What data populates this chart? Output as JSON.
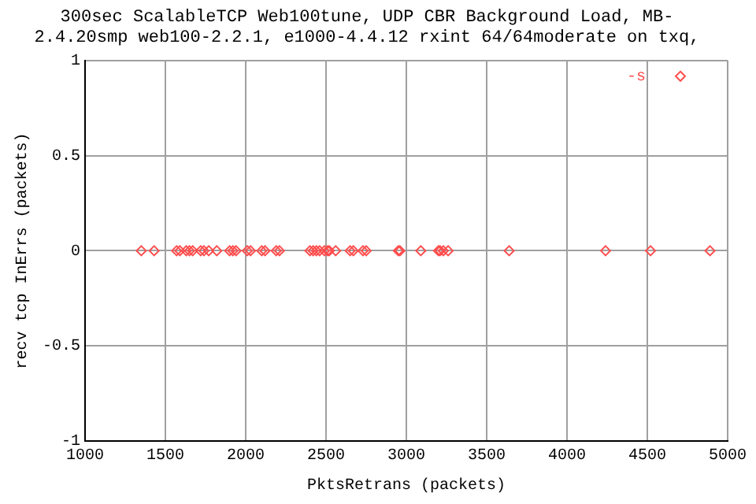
{
  "chart_data": {
    "type": "scatter",
    "title": "300sec ScalableTCP Web100tune, UDP CBR Background Load, MB-2.4.20smp web100-2.2.1, e1000-4.4.12 rxint 64/64moderate on txq,",
    "xlabel": "PktsRetrans (packets)",
    "ylabel": "recv tcp InErrs (packets)",
    "xlim": [
      1000,
      5000
    ],
    "xticks": [
      1000,
      1500,
      2000,
      2500,
      3000,
      3500,
      4000,
      4500,
      5000
    ],
    "ylim": [
      -1,
      1
    ],
    "yticks": [
      -1,
      -0.5,
      0,
      0.5,
      1
    ],
    "grid": true,
    "legend": "top right",
    "marker": "diamond",
    "series": [
      {
        "name": "-s",
        "color": "#ff4d4d",
        "x": [
          1350,
          1430,
          1570,
          1590,
          1630,
          1650,
          1670,
          1720,
          1740,
          1770,
          1820,
          1900,
          1920,
          1940,
          2010,
          2030,
          2100,
          2120,
          2190,
          2210,
          2400,
          2420,
          2440,
          2460,
          2490,
          2510,
          2520,
          2560,
          2650,
          2670,
          2730,
          2750,
          2950,
          2960,
          3090,
          3200,
          3210,
          3230,
          3260,
          3640,
          4240,
          4520,
          4890
        ],
        "values": [
          0,
          0,
          0,
          0,
          0,
          0,
          0,
          0,
          0,
          0,
          0,
          0,
          0,
          0,
          0,
          0,
          0,
          0,
          0,
          0,
          0,
          0,
          0,
          0,
          0,
          0,
          0,
          0,
          0,
          0,
          0,
          0,
          0,
          0,
          0,
          0,
          0,
          0,
          0,
          0,
          0,
          0,
          0
        ]
      }
    ]
  }
}
